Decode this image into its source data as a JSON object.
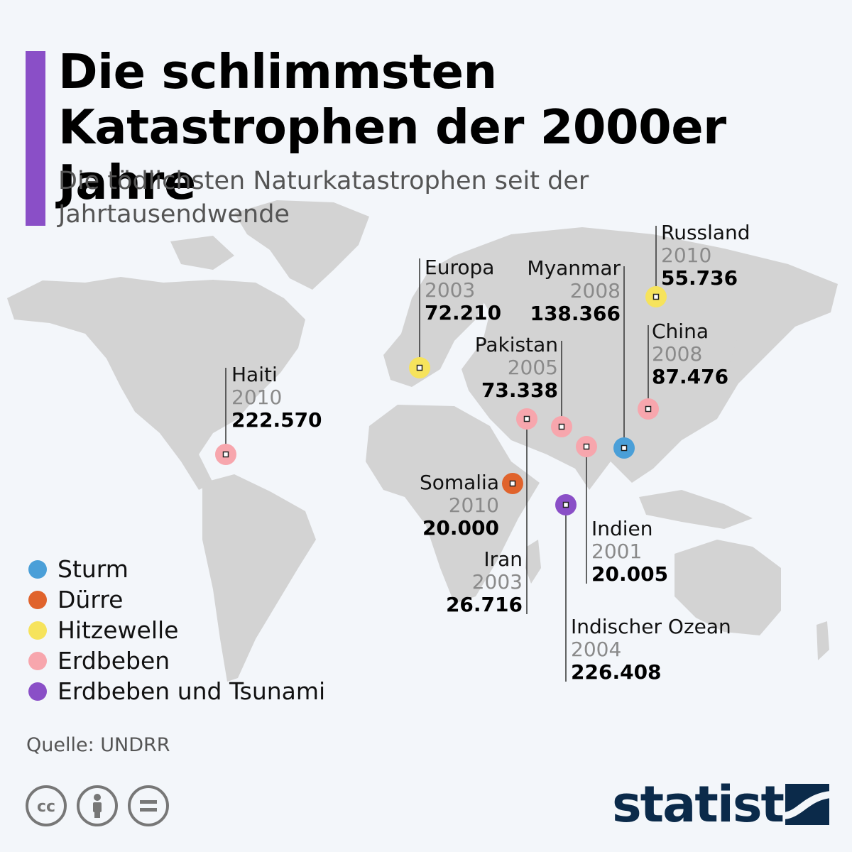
{
  "header": {
    "title": "Die schlimmsten Katastrophen der 2000er Jahre",
    "subtitle": "Die tödlichsten Naturkatastrophen seit der Jahrtausendwende",
    "accent_color": "#8a4fc7"
  },
  "categories": {
    "storm": {
      "label": "Sturm",
      "color": "#4a9fd8"
    },
    "drought": {
      "label": "Dürre",
      "color": "#e0632c"
    },
    "heatwave": {
      "label": "Hitzewelle",
      "color": "#f6e35c"
    },
    "earthquake": {
      "label": "Erdbeben",
      "color": "#f7a6ad"
    },
    "quake_tsunami": {
      "label": "Erdbeben und Tsunami",
      "color": "#8a4fc7"
    }
  },
  "legend": [
    "Sturm",
    "Dürre",
    "Hitzewelle",
    "Erdbeben",
    "Erdbeben und Tsunami"
  ],
  "disasters": [
    {
      "name": "Haiti",
      "year": "2010",
      "deaths": "222.570",
      "type": "Erdbeben"
    },
    {
      "name": "Europa",
      "year": "2003",
      "deaths": "72.210",
      "type": "Hitzewelle"
    },
    {
      "name": "Myanmar",
      "year": "2008",
      "deaths": "138.366",
      "type": "Sturm"
    },
    {
      "name": "Russland",
      "year": "2010",
      "deaths": "55.736",
      "type": "Hitzewelle"
    },
    {
      "name": "Pakistan",
      "year": "2005",
      "deaths": "73.338",
      "type": "Erdbeben"
    },
    {
      "name": "China",
      "year": "2008",
      "deaths": "87.476",
      "type": "Erdbeben"
    },
    {
      "name": "Somalia",
      "year": "2010",
      "deaths": "20.000",
      "type": "Dürre"
    },
    {
      "name": "Iran",
      "year": "2003",
      "deaths": "26.716",
      "type": "Erdbeben"
    },
    {
      "name": "Indien",
      "year": "2001",
      "deaths": "20.005",
      "type": "Erdbeben"
    },
    {
      "name": "Indischer Ozean",
      "year": "2004",
      "deaths": "226.408",
      "type": "Erdbeben und Tsunami"
    }
  ],
  "footer": {
    "source": "Quelle: UNDRR",
    "license_icons": [
      "cc-icon",
      "attribution-icon",
      "no-derivatives-icon"
    ],
    "brand": "statista",
    "brand_color": "#0b2a4a"
  }
}
